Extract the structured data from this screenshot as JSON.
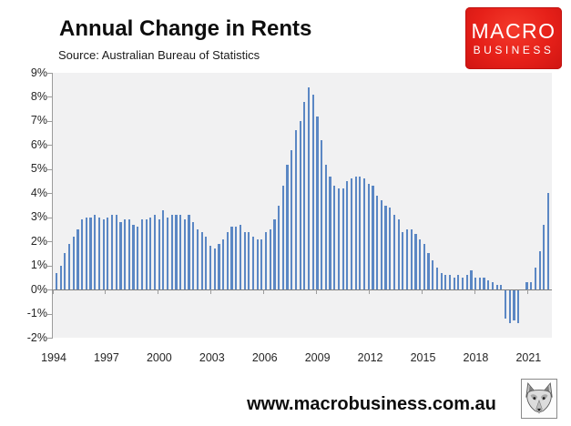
{
  "header": {
    "title": "Annual Change in Rents",
    "source": "Source: Australian Bureau of Statistics"
  },
  "brand_logo": {
    "line1": "MACRO",
    "line2": "BUSINESS",
    "bg_color": "#e62019",
    "text_color": "#ffffff"
  },
  "footer": {
    "url": "www.macrobusiness.com.au",
    "logo": "wolf-head-logo"
  },
  "chart_data": {
    "type": "bar",
    "title": "Annual Change in Rents",
    "source": "Source: Australian Bureau of Statistics",
    "unit": "percent annual change",
    "frequency": "quarterly",
    "start_period": "1994-Q1",
    "end_period": "2022-Q4",
    "values": [
      0.7,
      1.0,
      1.5,
      1.9,
      2.2,
      2.5,
      2.9,
      3.0,
      3.0,
      3.1,
      3.0,
      2.9,
      3.0,
      3.1,
      3.1,
      2.8,
      2.9,
      2.9,
      2.7,
      2.6,
      2.9,
      2.9,
      3.0,
      3.1,
      2.9,
      3.3,
      3.0,
      3.1,
      3.1,
      3.1,
      2.9,
      3.1,
      2.8,
      2.5,
      2.4,
      2.2,
      1.8,
      1.7,
      1.9,
      2.1,
      2.4,
      2.6,
      2.6,
      2.7,
      2.4,
      2.4,
      2.2,
      2.1,
      2.1,
      2.4,
      2.5,
      2.9,
      3.5,
      4.3,
      5.2,
      5.8,
      6.6,
      7.0,
      7.8,
      8.4,
      8.1,
      7.2,
      6.2,
      5.2,
      4.7,
      4.3,
      4.2,
      4.2,
      4.5,
      4.6,
      4.7,
      4.7,
      4.6,
      4.4,
      4.3,
      3.9,
      3.7,
      3.5,
      3.4,
      3.1,
      2.9,
      2.4,
      2.5,
      2.5,
      2.3,
      2.1,
      1.9,
      1.5,
      1.2,
      0.9,
      0.7,
      0.6,
      0.6,
      0.5,
      0.6,
      0.5,
      0.6,
      0.8,
      0.5,
      0.5,
      0.5,
      0.4,
      0.3,
      0.2,
      0.2,
      -1.2,
      -1.4,
      -1.3,
      -1.4,
      0.0,
      0.3,
      0.3,
      0.9,
      1.6,
      2.7,
      4.0
    ],
    "x_tick_labels": [
      "1994",
      "1997",
      "2000",
      "2003",
      "2006",
      "2009",
      "2012",
      "2015",
      "2018",
      "2021"
    ],
    "y_tick_labels": [
      "9%",
      "8%",
      "7%",
      "6%",
      "5%",
      "4%",
      "3%",
      "2%",
      "1%",
      "0%",
      "-1%",
      "-2%"
    ],
    "ylim": [
      -2,
      9
    ],
    "xlabel": "",
    "ylabel": "",
    "grid": false,
    "legend": null,
    "bar_color": "#5b87c4",
    "plot_bg": "#f1f1f2",
    "axis_color": "#9b9b9b"
  }
}
